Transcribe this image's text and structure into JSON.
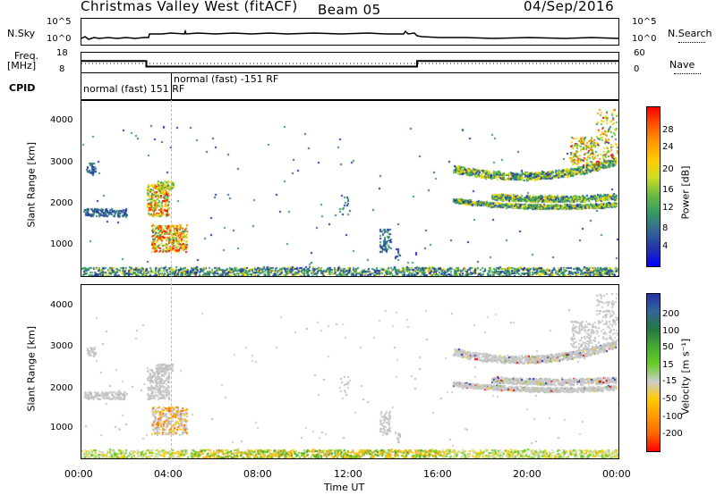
{
  "header": {
    "station": "Christmas Valley West (fitACF)",
    "beam": "Beam 05",
    "date": "04/Sep/2016"
  },
  "noise_panel": {
    "left_label": "N.Sky",
    "right_label": "N.Search",
    "left_ticks": [
      "10^5",
      "10^0"
    ],
    "right_ticks": [
      "10^5",
      "10^0"
    ]
  },
  "freq_panel": {
    "left_label_1": "Freq.",
    "left_label_2": "[MHz]",
    "right_label": "Nave",
    "left_ticks": [
      "18",
      "8"
    ],
    "right_ticks": [
      "60",
      "0"
    ]
  },
  "cpid": {
    "label": "CPID",
    "mode_1": "normal (fast) 151 RF",
    "mode_2": "normal (fast) -151 RF"
  },
  "power_panel": {
    "ylabel": "Slant Range [km]",
    "yticks": [
      "4000",
      "3000",
      "2000",
      "1000"
    ],
    "colorbar_label": "Power [dB]",
    "colorbar_ticks": [
      "28",
      "24",
      "20",
      "16",
      "12",
      "8",
      "4"
    ],
    "colors": [
      "#ff0000",
      "#ff5500",
      "#ff9900",
      "#ffcc00",
      "#ccdd22",
      "#66bb44",
      "#339966",
      "#336699",
      "#2233aa",
      "#0000ff"
    ]
  },
  "velocity_panel": {
    "ylabel": "Slant Range [km]",
    "yticks": [
      "4000",
      "3000",
      "2000",
      "1000"
    ],
    "colorbar_label": "Velocity [m s⁻¹]",
    "colorbar_ticks": [
      "200",
      "100",
      "50",
      "15",
      "-15",
      "-50",
      "-100",
      "-200"
    ],
    "colors": [
      "#2233aa",
      "#336699",
      "#227744",
      "#44aa33",
      "#66cc22",
      "#cccccc",
      "#ffcc00",
      "#ff9900",
      "#ff6600",
      "#ff0000"
    ]
  },
  "xaxis": {
    "label": "Time UT",
    "ticks": [
      "00:00",
      "04:00",
      "08:00",
      "12:00",
      "16:00",
      "20:00",
      "00:00"
    ]
  },
  "chart_data": {
    "type": "heatmap",
    "title": "Christmas Valley West (fitACF) Beam 05 04/Sep/2016",
    "xlabel": "Time UT",
    "ylabel": "Slant Range [km]",
    "x_range_hours": [
      0,
      24
    ],
    "y_range_km": [
      180,
      4600
    ],
    "series": [
      {
        "name": "Power [dB]",
        "color_range": [
          0,
          30
        ]
      },
      {
        "name": "Velocity [m s-1]",
        "color_range": [
          -250,
          250
        ]
      }
    ],
    "frequency_steps_mhz": [
      {
        "start_h": 0,
        "end_h": 2.9,
        "value": 14
      },
      {
        "start_h": 2.9,
        "end_h": 15.0,
        "value": 10.5
      },
      {
        "start_h": 15.0,
        "end_h": 24,
        "value": 14
      }
    ],
    "nave_level": 20
  }
}
